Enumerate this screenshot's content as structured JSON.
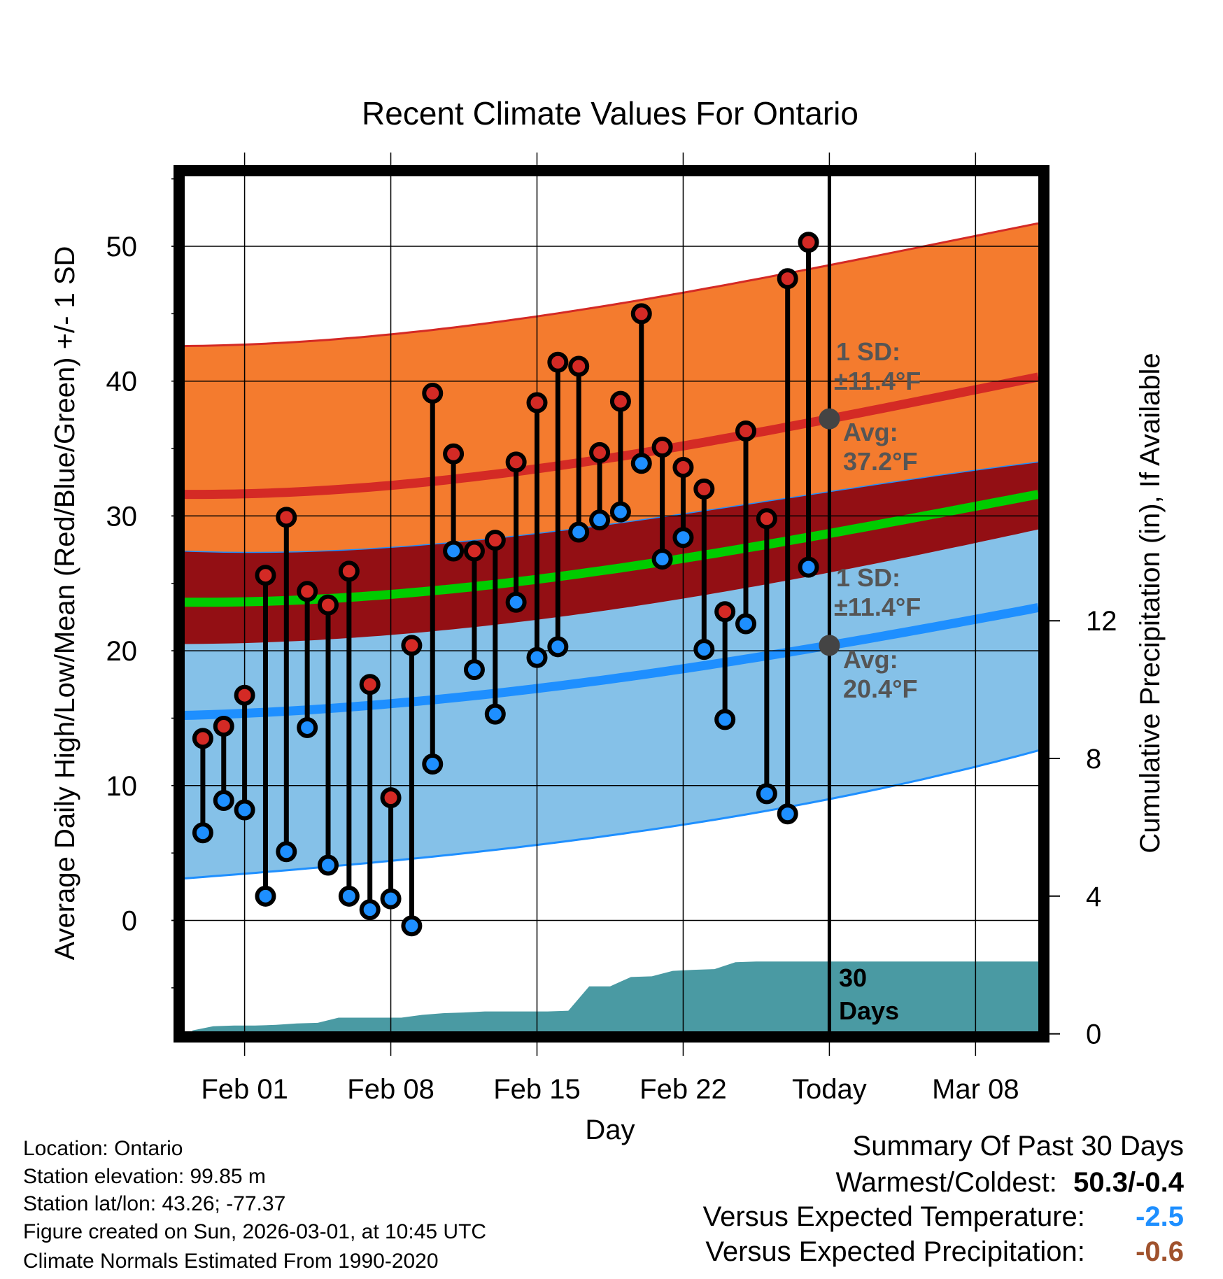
{
  "chart_data": {
    "type": "line",
    "title": "Recent Climate Values For Ontario",
    "xlabel": "Day",
    "ylabel": "Average Daily High/Low/Mean (Red/Blue/Green) +/- 1 SD",
    "y2label": "Cumulative Precipitation (in), If Available",
    "ylim": [
      -7.8,
      54.7
    ],
    "y2lim": [
      0,
      14.8
    ],
    "yticks": [
      "0",
      "10",
      "20",
      "30",
      "40",
      "50"
    ],
    "y2ticks": [
      "0",
      "4",
      "8",
      "12"
    ],
    "xticks": [
      {
        "label": "Feb 01",
        "day": 0
      },
      {
        "label": "Feb 08",
        "day": 7
      },
      {
        "label": "Feb 15",
        "day": 14
      },
      {
        "label": "Feb 22",
        "day": 21
      },
      {
        "label": "Today",
        "day": 28
      },
      {
        "label": "Mar 08",
        "day": 35
      }
    ],
    "grid": true,
    "dates": [
      "Jan 30",
      "Jan 31",
      "Feb 01",
      "Feb 02",
      "Feb 03",
      "Feb 04",
      "Feb 05",
      "Feb 06",
      "Feb 07",
      "Feb 08",
      "Feb 09",
      "Feb 10",
      "Feb 11",
      "Feb 12",
      "Feb 13",
      "Feb 14",
      "Feb 15",
      "Feb 16",
      "Feb 17",
      "Feb 18",
      "Feb 19",
      "Feb 20",
      "Feb 21",
      "Feb 22",
      "Feb 23",
      "Feb 24",
      "Feb 25",
      "Feb 26",
      "Feb 27",
      "Feb 28"
    ],
    "first_day": -2,
    "highs": [
      13.5,
      14.4,
      16.7,
      25.6,
      29.9,
      24.4,
      23.4,
      25.9,
      17.5,
      9.1,
      20.4,
      39.1,
      34.6,
      27.4,
      28.2,
      34.0,
      38.4,
      41.4,
      41.1,
      34.7,
      38.5,
      45.0,
      35.1,
      33.6,
      32.0,
      22.9,
      36.3,
      29.8,
      47.6,
      50.3
    ],
    "lows": [
      6.5,
      8.9,
      8.2,
      1.8,
      5.1,
      14.3,
      4.1,
      1.8,
      0.8,
      1.6,
      -0.4,
      11.6,
      27.4,
      18.6,
      15.3,
      23.6,
      19.5,
      20.3,
      28.8,
      29.7,
      30.3,
      33.9,
      26.8,
      28.4,
      20.1,
      14.9,
      22.0,
      9.4,
      7.9,
      26.2
    ],
    "precip_cumulative": [
      0.1,
      0.22,
      0.24,
      0.24,
      0.26,
      0.3,
      0.32,
      0.47,
      0.47,
      0.47,
      0.47,
      0.55,
      0.6,
      0.62,
      0.65,
      0.65,
      0.65,
      0.65,
      0.67,
      1.38,
      1.38,
      1.65,
      1.67,
      1.83,
      1.86,
      1.88,
      2.08,
      2.1,
      2.1,
      2.1
    ],
    "normals": {
      "days": [
        -3,
        14,
        28,
        38
      ],
      "high_plus_sd": [
        42.6,
        44.8,
        48.6,
        51.7
      ],
      "high_mean": [
        31.6,
        33.5,
        37.2,
        40.3
      ],
      "high_minus_sd": [
        20.5,
        22.3,
        25.8,
        29.0
      ],
      "low_plus_sd": [
        27.4,
        28.7,
        31.8,
        34.0
      ],
      "mean": [
        23.6,
        25.3,
        28.7,
        31.6
      ],
      "low_mean": [
        15.2,
        17.2,
        20.4,
        23.2
      ],
      "low_minus_sd": [
        3.1,
        5.6,
        9.0,
        12.6
      ]
    },
    "annotations": {
      "high_sd_label": "1 SD:",
      "high_sd_value": "±11.4°F",
      "high_avg_label": "Avg:",
      "high_avg_value": "37.2°F",
      "high_avg": 37.2,
      "low_sd_label": "1 SD:",
      "low_sd_value": "±11.4°F",
      "low_avg_label": "Avg:",
      "low_avg_value": "20.4°F",
      "low_avg": 20.4,
      "period_num": "30",
      "period_unit": "Days"
    },
    "colors": {
      "orange": "#f47b2e",
      "light_blue": "#85c1e8",
      "dark_red": "#930f14",
      "green": "#00cc00",
      "red": "#d42a25",
      "blue": "#1e8fff",
      "teal": "#4a9aa3",
      "annotation": "#555555"
    }
  },
  "footer": {
    "location": "Location: Ontario",
    "elevation": "Station elevation: 99.85 m",
    "latlon": "Station lat/lon: 43.26; -77.37",
    "created": "Figure created on Sun, 2026-03-01, at 10:45 UTC",
    "normals": "Climate Normals Estimated From 1990-2020"
  },
  "summary": {
    "title": "Summary Of Past 30 Days",
    "warmest_label": "Warmest/Coldest:",
    "warmest_value": "50.3/-0.4",
    "temp_label": "Versus Expected Temperature:",
    "temp_value": "-2.5",
    "temp_color": "#1e8fff",
    "precip_label": "Versus Expected Precipitation:",
    "precip_value": "-0.6",
    "precip_color": "#a0522d"
  }
}
